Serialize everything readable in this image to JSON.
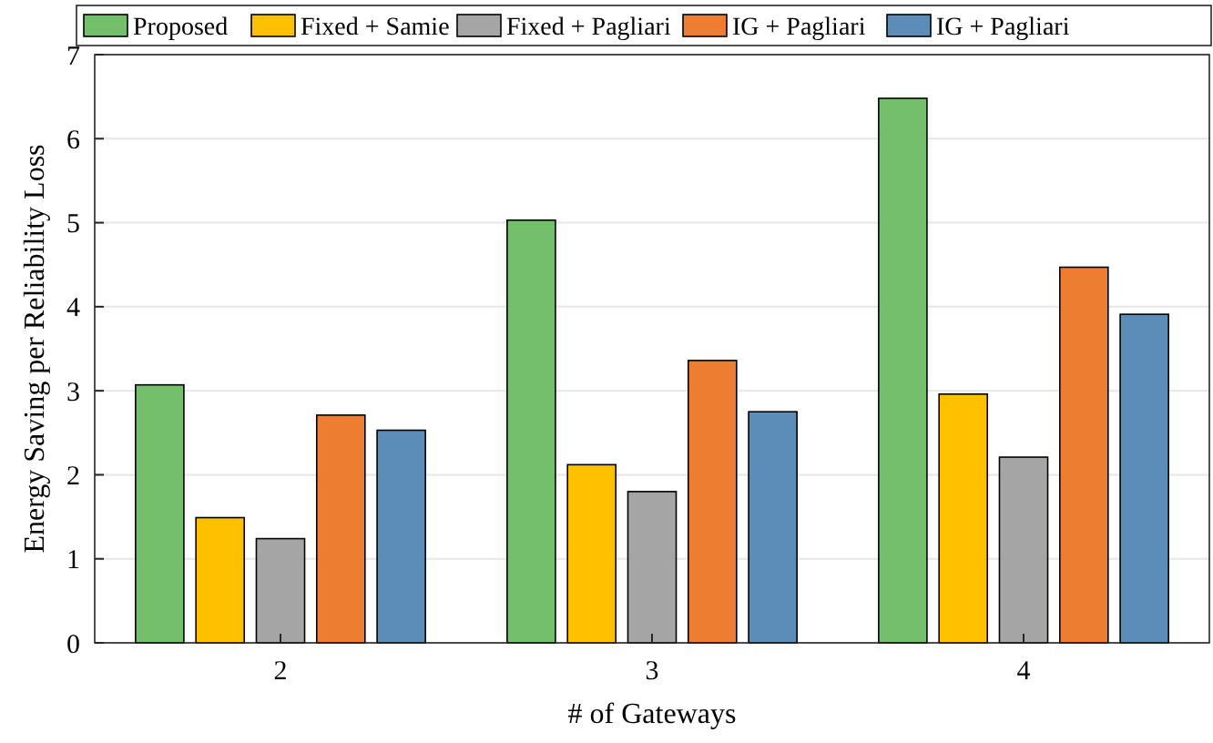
{
  "chart_data": {
    "type": "bar",
    "xlabel": "# of Gateways",
    "ylabel": "Energy Saving per Reliability Loss",
    "categories": [
      "2",
      "3",
      "4"
    ],
    "series": [
      {
        "name": "Proposed",
        "color": "#73bf6b",
        "values": [
          3.07,
          5.03,
          6.48
        ]
      },
      {
        "name": "Fixed + Samie",
        "color": "#ffc000",
        "values": [
          1.49,
          2.12,
          2.96
        ]
      },
      {
        "name": "Fixed + Pagliari",
        "color": "#a5a5a5",
        "values": [
          1.24,
          1.8,
          2.21
        ]
      },
      {
        "name": "IG + Pagliari",
        "color": "#ed7d31",
        "values": [
          2.71,
          3.36,
          4.47
        ]
      },
      {
        "name": "IG + Pagliari",
        "color": "#5b8db8",
        "values": [
          2.53,
          2.75,
          3.91
        ]
      }
    ],
    "ylim": [
      0,
      7
    ],
    "yticks": [
      0,
      1,
      2,
      3,
      4,
      5,
      6,
      7
    ],
    "grid": "y",
    "legend": "top"
  }
}
